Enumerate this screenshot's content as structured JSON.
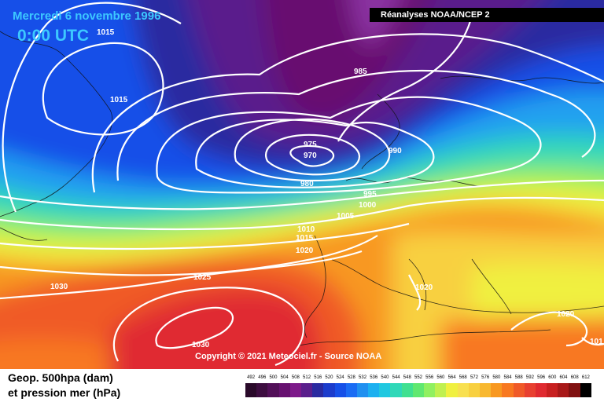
{
  "header": {
    "date": "Mercredi 6 novembre 1996",
    "time": "0:00 UTC",
    "source": "Réanalyses NOAA/NCEP 2",
    "copyright": "Copyright © 2021 Meteociel.fr - Source NOAA"
  },
  "legend": {
    "line1": "Geop. 500hpa (dam)",
    "line2": "et pression mer (hPa)",
    "scale_values": [
      "492",
      "496",
      "500",
      "504",
      "508",
      "512",
      "516",
      "520",
      "524",
      "528",
      "532",
      "536",
      "540",
      "544",
      "548",
      "552",
      "556",
      "560",
      "564",
      "568",
      "572",
      "576",
      "580",
      "584",
      "588",
      "592",
      "596",
      "600",
      "604",
      "608",
      "612"
    ],
    "scale_colors": [
      "#2a0a2a",
      "#3d0d40",
      "#520f58",
      "#671170",
      "#7d1a8a",
      "#5a1f8c",
      "#2a2aa0",
      "#1c3ccc",
      "#1650e8",
      "#1a6cf4",
      "#2090f0",
      "#1cb0f0",
      "#20c8e0",
      "#30d8b8",
      "#40e090",
      "#60e870",
      "#90f060",
      "#c0f050",
      "#f0f040",
      "#f8e050",
      "#f8d040",
      "#f8b830",
      "#f89820",
      "#f87820",
      "#f05a28",
      "#e84030",
      "#e02a30",
      "#c82020",
      "#a81818",
      "#801010",
      "#000000"
    ]
  },
  "isobar_labels": [
    {
      "text": "1015",
      "id": "l1015a"
    },
    {
      "text": "1015",
      "id": "l1015b"
    },
    {
      "text": "985",
      "id": "l985"
    },
    {
      "text": "975",
      "id": "l975"
    },
    {
      "text": "970",
      "id": "l970"
    },
    {
      "text": "990",
      "id": "l990"
    },
    {
      "text": "980",
      "id": "l980"
    },
    {
      "text": "995",
      "id": "l995"
    },
    {
      "text": "1000",
      "id": "l1000"
    },
    {
      "text": "1005",
      "id": "l1005"
    },
    {
      "text": "1010",
      "id": "l1010"
    },
    {
      "text": "1015",
      "id": "l1015c"
    },
    {
      "text": "1020",
      "id": "l1020a"
    },
    {
      "text": "1020",
      "id": "l1020b"
    },
    {
      "text": "1020",
      "id": "l1020c"
    },
    {
      "text": "1025",
      "id": "l1025"
    },
    {
      "text": "1030",
      "id": "l1030a"
    },
    {
      "text": "1030",
      "id": "l1030b"
    },
    {
      "text": "101",
      "id": "l101"
    }
  ]
}
